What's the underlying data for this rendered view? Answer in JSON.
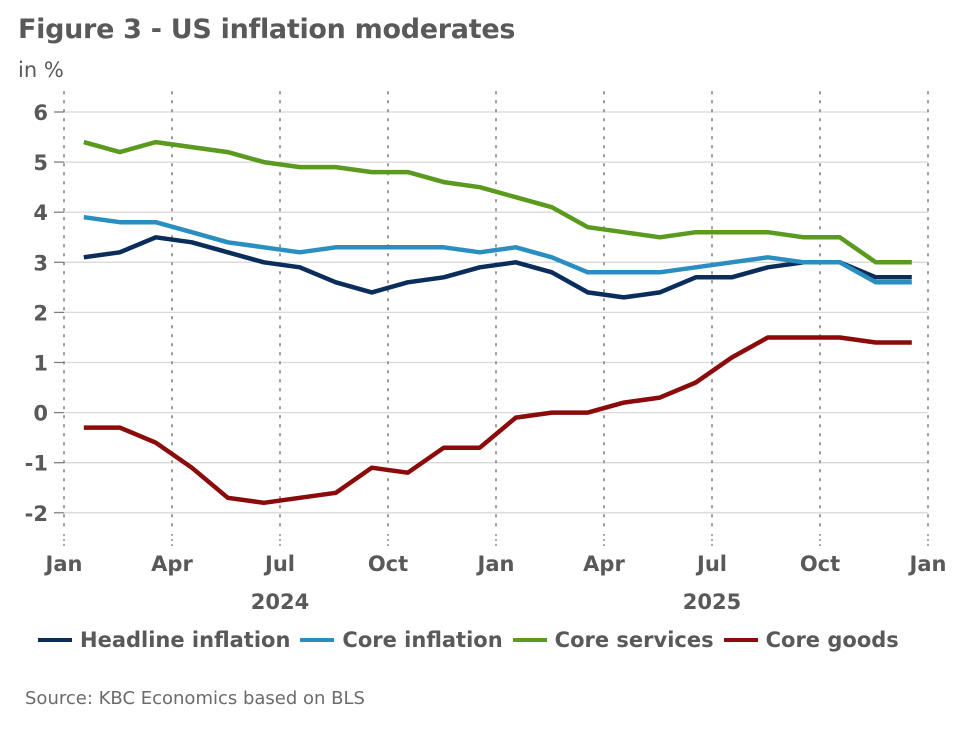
{
  "chart_data": {
    "type": "line",
    "title": "Figure 3 - US inflation moderates",
    "subtitle": "in %",
    "xlabel": "",
    "ylabel": "in %",
    "ylim": [
      -2,
      6
    ],
    "yticks": [
      6,
      5,
      4,
      3,
      2,
      1,
      0,
      -1,
      -2
    ],
    "ytick_labels": [
      "6",
      "5",
      "4",
      "3",
      "2",
      "1",
      "0",
      "-1",
      "-2"
    ],
    "x_axis": {
      "start": "2024-01",
      "end": "2026-01",
      "tick_labels": [
        "Jan",
        "Apr",
        "Jul",
        "Oct",
        "Jan",
        "Apr",
        "Jul",
        "Oct",
        "Jan"
      ],
      "tick_months": [
        0,
        3,
        6,
        9,
        12,
        15,
        18,
        21,
        24
      ],
      "year_labels": [
        {
          "label": "2024",
          "center_month": 6
        },
        {
          "label": "2025",
          "center_month": 18
        }
      ]
    },
    "grid": true,
    "legend_position": "bottom",
    "x": [
      "2024-01",
      "2024-02",
      "2024-03",
      "2024-04",
      "2024-05",
      "2024-06",
      "2024-07",
      "2024-08",
      "2024-09",
      "2024-10",
      "2024-11",
      "2024-12",
      "2025-01",
      "2025-02",
      "2025-03",
      "2025-04",
      "2025-05",
      "2025-06",
      "2025-07",
      "2025-08",
      "2025-09",
      "2025-10",
      "2025-11",
      "2025-12"
    ],
    "series": [
      {
        "name": "Headline inflation",
        "color": "#0b2d5b",
        "values": [
          3.1,
          3.2,
          3.5,
          3.4,
          3.2,
          3.0,
          2.9,
          2.6,
          2.4,
          2.6,
          2.7,
          2.9,
          3.0,
          2.8,
          2.4,
          2.3,
          2.4,
          2.7,
          2.7,
          2.9,
          3.0,
          3.0,
          2.7,
          2.7
        ]
      },
      {
        "name": "Core inflation",
        "color": "#2a8ec0",
        "values": [
          3.9,
          3.8,
          3.8,
          3.6,
          3.4,
          3.3,
          3.2,
          3.3,
          3.3,
          3.3,
          3.3,
          3.2,
          3.3,
          3.1,
          2.8,
          2.8,
          2.8,
          2.9,
          3.0,
          3.1,
          3.0,
          3.0,
          2.6,
          2.6
        ]
      },
      {
        "name": "Core services",
        "color": "#5a9a1e",
        "values": [
          5.4,
          5.2,
          5.4,
          5.3,
          5.2,
          5.0,
          4.9,
          4.9,
          4.8,
          4.8,
          4.6,
          4.5,
          4.3,
          4.1,
          3.7,
          3.6,
          3.5,
          3.6,
          3.6,
          3.6,
          3.5,
          3.5,
          3.0,
          3.0
        ]
      },
      {
        "name": "Core goods",
        "color": "#8b0a0a",
        "values": [
          -0.3,
          -0.3,
          -0.6,
          -1.1,
          -1.7,
          -1.8,
          -1.7,
          -1.6,
          -1.1,
          -1.2,
          -0.7,
          -0.7,
          -0.1,
          0.0,
          0.0,
          0.2,
          0.3,
          0.6,
          1.1,
          1.5,
          1.5,
          1.5,
          1.4,
          1.4
        ]
      }
    ],
    "source": "Source: KBC Economics based on BLS"
  }
}
